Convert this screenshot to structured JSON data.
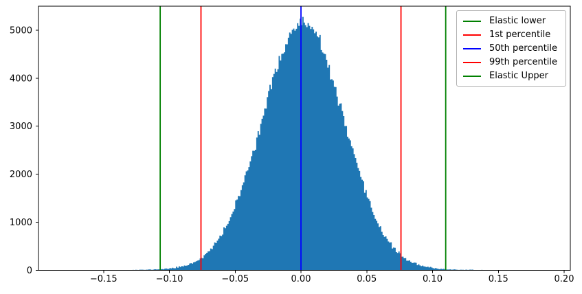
{
  "chart_data": {
    "type": "histogram",
    "grid": false,
    "legend_position": "upper right",
    "background_color": "#ffffff",
    "spine_color": "#000000",
    "xlim": [
      -0.1995,
      0.2047
    ],
    "ylim": [
      0,
      5500
    ],
    "x_ticks": [
      {
        "value": -0.15,
        "label": "−0.15"
      },
      {
        "value": -0.1,
        "label": "−0.10"
      },
      {
        "value": -0.05,
        "label": "−0.05"
      },
      {
        "value": 0.0,
        "label": "0.00"
      },
      {
        "value": 0.05,
        "label": "0.05"
      },
      {
        "value": 0.1,
        "label": "0.10"
      },
      {
        "value": 0.15,
        "label": "0.15"
      },
      {
        "value": 0.2,
        "label": "0.20"
      }
    ],
    "y_ticks": [
      {
        "value": 0,
        "label": "0"
      },
      {
        "value": 1000,
        "label": "1000"
      },
      {
        "value": 2000,
        "label": "2000"
      },
      {
        "value": 3000,
        "label": "3000"
      },
      {
        "value": 4000,
        "label": "4000"
      },
      {
        "value": 5000,
        "label": "5000"
      }
    ],
    "histogram": {
      "color": "#1f77b4",
      "approx_distribution": "gaussian",
      "mean": 0.0015,
      "std": 0.0312,
      "peak_bin_count": 5100,
      "bin_width": 0.001,
      "range": [
        -0.138,
        0.142
      ],
      "tail_weight": 0.008,
      "tail_scale": 1.9,
      "noise_model": "poisson",
      "seed": 11
    },
    "vlines": [
      {
        "label": "Elastic lower",
        "value": -0.107,
        "color": "#008000"
      },
      {
        "label": "1st percentile",
        "value": -0.076,
        "color": "#ff0000"
      },
      {
        "label": "50th percentile",
        "value": 0.0,
        "color": "#0000ff"
      },
      {
        "label": "99th percentile",
        "value": 0.076,
        "color": "#ff0000"
      },
      {
        "label": "Elastic Upper",
        "value": 0.11,
        "color": "#008000"
      }
    ]
  }
}
